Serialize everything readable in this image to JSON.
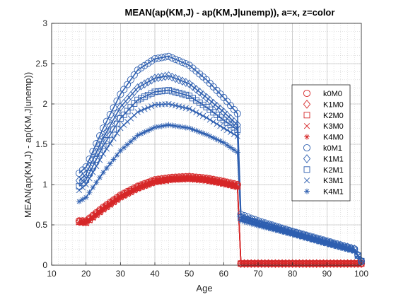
{
  "chart_data": {
    "type": "scatter",
    "title": "MEAN(ap(KM,J) - ap(KM,J|unemp)), a=x, z=color",
    "xlabel": "Age",
    "ylabel": "MEAN(ap(KM,J) - ap(KM,J|unemp))",
    "xlim": [
      10,
      100
    ],
    "ylim": [
      0,
      3
    ],
    "xticks": [
      10,
      20,
      30,
      40,
      50,
      60,
      70,
      80,
      90,
      100
    ],
    "yticks": [
      0,
      0.5,
      1,
      1.5,
      2,
      2.5,
      3
    ],
    "ytick_labels": [
      "0",
      "0.5",
      "1",
      "1.5",
      "2",
      "2.5",
      "3"
    ],
    "grid": true,
    "minor_grid": true,
    "legend_position": "east",
    "colors": {
      "red": "#d62728",
      "blue": "#2e5fb0"
    },
    "series": [
      {
        "name": "k0M0",
        "marker": "circle",
        "color": "red",
        "points": [
          [
            18,
            0.55
          ],
          [
            20,
            0.55
          ],
          [
            25,
            0.72
          ],
          [
            30,
            0.87
          ],
          [
            35,
            0.98
          ],
          [
            40,
            1.06
          ],
          [
            45,
            1.09
          ],
          [
            50,
            1.1
          ],
          [
            55,
            1.08
          ],
          [
            60,
            1.04
          ],
          [
            64,
            1.0
          ],
          [
            65,
            0.02
          ],
          [
            70,
            0.02
          ],
          [
            80,
            0.02
          ],
          [
            90,
            0.02
          ],
          [
            100,
            0.02
          ]
        ]
      },
      {
        "name": "K1M0",
        "marker": "diamond",
        "color": "red",
        "points": [
          [
            18,
            0.54
          ],
          [
            20,
            0.54
          ],
          [
            25,
            0.71
          ],
          [
            30,
            0.86
          ],
          [
            35,
            0.97
          ],
          [
            40,
            1.05
          ],
          [
            45,
            1.08
          ],
          [
            50,
            1.09
          ],
          [
            55,
            1.07
          ],
          [
            60,
            1.03
          ],
          [
            64,
            0.99
          ],
          [
            65,
            0.02
          ],
          [
            70,
            0.02
          ],
          [
            80,
            0.02
          ],
          [
            90,
            0.02
          ],
          [
            100,
            0.02
          ]
        ]
      },
      {
        "name": "K2M0",
        "marker": "square",
        "color": "red",
        "points": [
          [
            18,
            0.54
          ],
          [
            20,
            0.53
          ],
          [
            25,
            0.7
          ],
          [
            30,
            0.85
          ],
          [
            35,
            0.96
          ],
          [
            40,
            1.04
          ],
          [
            45,
            1.07
          ],
          [
            50,
            1.08
          ],
          [
            55,
            1.06
          ],
          [
            60,
            1.02
          ],
          [
            64,
            0.98
          ],
          [
            65,
            0.02
          ],
          [
            70,
            0.02
          ],
          [
            80,
            0.02
          ],
          [
            90,
            0.02
          ],
          [
            100,
            0.02
          ]
        ]
      },
      {
        "name": "K3M0",
        "marker": "x",
        "color": "red",
        "points": [
          [
            18,
            0.53
          ],
          [
            20,
            0.52
          ],
          [
            25,
            0.69
          ],
          [
            30,
            0.84
          ],
          [
            35,
            0.95
          ],
          [
            40,
            1.03
          ],
          [
            45,
            1.06
          ],
          [
            50,
            1.07
          ],
          [
            55,
            1.05
          ],
          [
            60,
            1.01
          ],
          [
            64,
            0.97
          ],
          [
            65,
            0.02
          ],
          [
            70,
            0.02
          ],
          [
            80,
            0.02
          ],
          [
            90,
            0.02
          ],
          [
            100,
            0.02
          ]
        ]
      },
      {
        "name": "K4M0",
        "marker": "asterisk",
        "color": "red",
        "points": [
          [
            18,
            0.53
          ],
          [
            20,
            0.52
          ],
          [
            25,
            0.68
          ],
          [
            30,
            0.83
          ],
          [
            35,
            0.94
          ],
          [
            40,
            1.02
          ],
          [
            45,
            1.05
          ],
          [
            50,
            1.06
          ],
          [
            55,
            1.04
          ],
          [
            60,
            1.0
          ],
          [
            64,
            0.96
          ],
          [
            65,
            0.02
          ],
          [
            70,
            0.02
          ],
          [
            80,
            0.02
          ],
          [
            90,
            0.02
          ],
          [
            100,
            0.02
          ]
        ]
      },
      {
        "name": "k0M1",
        "marker": "circle",
        "color": "blue",
        "points": [
          [
            18,
            1.14
          ],
          [
            20,
            1.22
          ],
          [
            25,
            1.7
          ],
          [
            30,
            2.12
          ],
          [
            35,
            2.42
          ],
          [
            40,
            2.56
          ],
          [
            44,
            2.59
          ],
          [
            50,
            2.48
          ],
          [
            55,
            2.3
          ],
          [
            60,
            2.08
          ],
          [
            64,
            1.88
          ],
          [
            65,
            0.63
          ],
          [
            70,
            0.55
          ],
          [
            80,
            0.42
          ],
          [
            90,
            0.3
          ],
          [
            98,
            0.2
          ],
          [
            100,
            0.05
          ]
        ]
      },
      {
        "name": "K1M1",
        "marker": "diamond",
        "color": "blue",
        "points": [
          [
            18,
            1.05
          ],
          [
            20,
            1.13
          ],
          [
            25,
            1.58
          ],
          [
            30,
            1.96
          ],
          [
            35,
            2.2
          ],
          [
            40,
            2.32
          ],
          [
            44,
            2.35
          ],
          [
            50,
            2.25
          ],
          [
            55,
            2.08
          ],
          [
            60,
            1.9
          ],
          [
            64,
            1.74
          ],
          [
            65,
            0.6
          ],
          [
            70,
            0.53
          ],
          [
            80,
            0.41
          ],
          [
            90,
            0.29
          ],
          [
            98,
            0.2
          ],
          [
            100,
            0.05
          ]
        ]
      },
      {
        "name": "K2M1",
        "marker": "square",
        "color": "blue",
        "points": [
          [
            18,
            0.98
          ],
          [
            20,
            1.06
          ],
          [
            25,
            1.48
          ],
          [
            30,
            1.82
          ],
          [
            35,
            2.05
          ],
          [
            40,
            2.15
          ],
          [
            44,
            2.17
          ],
          [
            50,
            2.1
          ],
          [
            55,
            1.96
          ],
          [
            60,
            1.8
          ],
          [
            64,
            1.68
          ],
          [
            65,
            0.59
          ],
          [
            70,
            0.52
          ],
          [
            80,
            0.4
          ],
          [
            90,
            0.28
          ],
          [
            98,
            0.19
          ],
          [
            100,
            0.05
          ]
        ]
      },
      {
        "name": "K3M1",
        "marker": "x",
        "color": "blue",
        "points": [
          [
            18,
            0.93
          ],
          [
            20,
            1.0
          ],
          [
            25,
            1.38
          ],
          [
            30,
            1.7
          ],
          [
            35,
            1.9
          ],
          [
            40,
            1.99
          ],
          [
            44,
            2.0
          ],
          [
            50,
            1.94
          ],
          [
            55,
            1.83
          ],
          [
            60,
            1.7
          ],
          [
            64,
            1.6
          ],
          [
            65,
            0.58
          ],
          [
            70,
            0.51
          ],
          [
            80,
            0.39
          ],
          [
            90,
            0.27
          ],
          [
            98,
            0.18
          ],
          [
            100,
            0.05
          ]
        ]
      },
      {
        "name": "K4M1",
        "marker": "asterisk",
        "color": "blue",
        "points": [
          [
            18,
            0.79
          ],
          [
            20,
            0.84
          ],
          [
            25,
            1.15
          ],
          [
            30,
            1.42
          ],
          [
            35,
            1.61
          ],
          [
            40,
            1.71
          ],
          [
            44,
            1.74
          ],
          [
            50,
            1.7
          ],
          [
            55,
            1.62
          ],
          [
            60,
            1.52
          ],
          [
            64,
            1.4
          ],
          [
            65,
            0.55
          ],
          [
            70,
            0.49
          ],
          [
            80,
            0.38
          ],
          [
            90,
            0.26
          ],
          [
            98,
            0.17
          ],
          [
            100,
            0.05
          ]
        ]
      }
    ]
  }
}
